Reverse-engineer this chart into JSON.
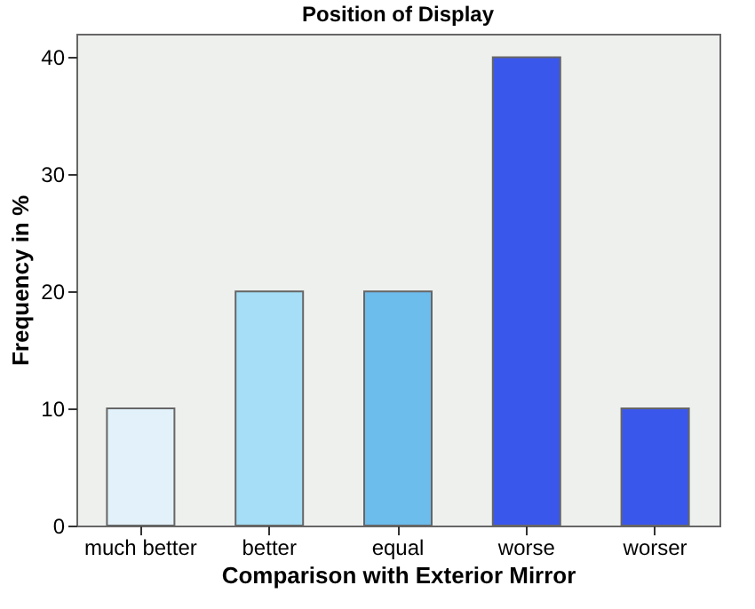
{
  "chart_data": {
    "type": "bar",
    "title": "Position of Display",
    "xlabel": "Comparison with Exterior Mirror",
    "ylabel": "Frequency in %",
    "categories": [
      "much better",
      "better",
      "equal",
      "worse",
      "worser"
    ],
    "values": [
      10,
      20,
      20,
      40,
      10
    ],
    "colors": [
      "#e3f1fa",
      "#a5def6",
      "#6cbcec",
      "#3a57ec",
      "#3a57ec"
    ],
    "ylim": [
      0,
      42
    ],
    "yticks": [
      0,
      10,
      20,
      30,
      40
    ],
    "grid": false
  }
}
